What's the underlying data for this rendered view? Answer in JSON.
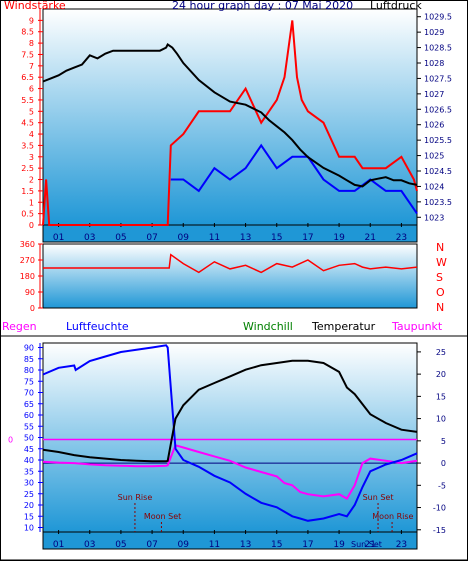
{
  "header": {
    "left_label": "Windstärke",
    "title": "24 hour graph day : 07 Mai 2020",
    "right_label": "Luftdruck"
  },
  "colors": {
    "wind": "#ff0000",
    "gust_blue": "#0000ff",
    "pressure": "#000000",
    "direction": "#ff0000",
    "temperature": "#000000",
    "humidity": "#0000ff",
    "windchill": "#008000",
    "dewpoint": "#ff00ff",
    "zero_line": "#ff00ff",
    "rain_label": "#ff00ff",
    "axis_text": "#000080",
    "plot_top": "#ffffff",
    "plot_bottom": "#1f97d6"
  },
  "hour_ticks": [
    "01",
    "03",
    "05",
    "07",
    "09",
    "11",
    "13",
    "15",
    "17",
    "19",
    "21",
    "23"
  ],
  "chart_data": [
    {
      "type": "line",
      "name": "wind-pressure",
      "x_unit": "hour",
      "xlim": [
        0,
        24
      ],
      "y_left": {
        "label": "Windstärke",
        "range": [
          0,
          9.5
        ],
        "ticks": [
          "0",
          "0.5",
          "1",
          "1.5",
          "2",
          "2.5",
          "3",
          "3.5",
          "4",
          "4.5",
          "5",
          "5.5",
          "6",
          "6.5",
          "7",
          "7.5",
          "8",
          "8.5",
          "9"
        ]
      },
      "y_right": {
        "label": "Luftdruck",
        "range": [
          1022.75,
          1029.75
        ],
        "ticks": [
          "1023",
          "1023.5",
          "1024",
          "1024.5",
          "1025",
          "1025.5",
          "1026",
          "1026.5",
          "1027",
          "1027.5",
          "1028",
          "1028.5",
          "1029",
          "1029.5"
        ]
      },
      "series": [
        {
          "name": "Luftdruck",
          "axis": "right",
          "x": [
            0,
            0.5,
            1,
            1.5,
            2,
            2.5,
            3,
            3.5,
            4,
            4.5,
            5,
            5.5,
            6,
            6.5,
            7,
            7.5,
            7.9,
            8,
            8.3,
            8.6,
            9,
            10,
            11,
            12,
            13,
            14,
            14.5,
            15,
            15.5,
            16,
            16.5,
            17,
            18,
            19,
            19.5,
            20,
            20.5,
            21,
            21.5,
            22,
            22.5,
            23,
            23.5,
            24
          ],
          "y": [
            1027.4,
            1027.5,
            1027.6,
            1027.75,
            1027.85,
            1027.95,
            1028.25,
            1028.15,
            1028.3,
            1028.4,
            1028.4,
            1028.4,
            1028.4,
            1028.4,
            1028.4,
            1028.4,
            1028.5,
            1028.6,
            1028.5,
            1028.3,
            1028.0,
            1027.45,
            1027.05,
            1026.75,
            1026.65,
            1026.4,
            1026.15,
            1025.95,
            1025.75,
            1025.5,
            1025.2,
            1024.95,
            1024.6,
            1024.35,
            1024.2,
            1024.05,
            1024.0,
            1024.2,
            1024.25,
            1024.3,
            1024.2,
            1024.2,
            1024.1,
            1024.05
          ]
        },
        {
          "name": "Böen",
          "axis": "left",
          "x": [
            0,
            0.2,
            0.4,
            8.0,
            8.2,
            9,
            10,
            11,
            12,
            13,
            14,
            15,
            15.5,
            16,
            16.3,
            16.6,
            17,
            18,
            19,
            20,
            20.5,
            21,
            22,
            23,
            23.8,
            24
          ],
          "y": [
            0,
            2,
            0,
            0,
            3.5,
            4,
            5,
            5,
            5,
            6,
            4.5,
            5.5,
            6.5,
            9,
            6.5,
            5.5,
            5,
            4.5,
            3,
            3,
            2.5,
            2.5,
            2.5,
            3,
            2,
            1.5
          ]
        },
        {
          "name": "Wind",
          "axis": "left",
          "x": [
            8.2,
            9,
            10,
            11,
            12,
            13,
            14,
            15,
            16,
            17,
            18,
            19,
            20,
            21,
            22,
            23,
            24
          ],
          "y": [
            2,
            2,
            1.5,
            2.5,
            2,
            2.5,
            3.5,
            2.5,
            3,
            3,
            2,
            1.5,
            1.5,
            2,
            1.5,
            1.5,
            0.5
          ]
        }
      ]
    },
    {
      "type": "line",
      "name": "wind-direction",
      "x_unit": "hour",
      "xlim": [
        0,
        24
      ],
      "y_left": {
        "range": [
          0,
          360
        ],
        "ticks": [
          "0",
          "90",
          "180",
          "270",
          "360"
        ]
      },
      "y_right_labels": [
        "N",
        "W",
        "S",
        "O",
        "N"
      ],
      "series": [
        {
          "name": "Windrichtung",
          "x": [
            0,
            8.1,
            8.2,
            9,
            10,
            11,
            12,
            13,
            14,
            15,
            16,
            17,
            18,
            19,
            20,
            20.5,
            21,
            22,
            23,
            24
          ],
          "y": [
            225,
            225,
            300,
            250,
            200,
            260,
            220,
            240,
            200,
            250,
            230,
            270,
            210,
            240,
            250,
            230,
            220,
            230,
            220,
            230
          ]
        }
      ]
    },
    {
      "type": "line",
      "name": "temperature-humidity",
      "x_unit": "hour",
      "xlim": [
        0,
        24
      ],
      "y_left": {
        "range": [
          8,
          92
        ],
        "ticks": [
          "10",
          "15",
          "20",
          "25",
          "30",
          "35",
          "40",
          "45",
          "50",
          "55",
          "60",
          "65",
          "70",
          "75",
          "80",
          "85",
          "90"
        ]
      },
      "y_right": {
        "range": [
          -15.5,
          27
        ],
        "ticks": [
          "-15",
          "-10",
          "-5",
          "0",
          "5",
          "10",
          "15",
          "20",
          "25"
        ]
      },
      "legend": [
        "Regen",
        "Luftfeuchte",
        "Windchill",
        "Temperatur",
        "Taupunkt"
      ],
      "series": [
        {
          "name": "Luftfeuchte",
          "axis": "left",
          "x": [
            0,
            1,
            2,
            2.1,
            3,
            4,
            5,
            6,
            7,
            7.9,
            8,
            8.5,
            9,
            10,
            11,
            12,
            13,
            14,
            15,
            15.5,
            16,
            16.5,
            17,
            18,
            19,
            19.5,
            20,
            20.5,
            21,
            22,
            23,
            24
          ],
          "y": [
            78,
            81,
            82,
            80,
            84,
            86,
            88,
            89,
            90,
            91,
            90,
            45,
            40,
            37,
            33,
            30,
            25,
            21,
            19,
            17,
            15,
            14,
            13,
            14,
            16,
            15,
            20,
            28,
            35,
            38,
            40,
            43
          ]
        },
        {
          "name": "Temperatur",
          "axis": "right",
          "x": [
            0,
            1,
            2,
            3,
            4,
            5,
            6,
            7,
            7.9,
            8,
            8.5,
            9,
            10,
            11,
            12,
            13,
            14,
            15,
            16,
            17,
            18,
            19,
            19.5,
            20,
            21,
            22,
            23,
            24
          ],
          "y": [
            3,
            2.5,
            1.8,
            1.3,
            1,
            0.7,
            0.5,
            0.4,
            0.4,
            0.5,
            10,
            13,
            16.5,
            18,
            19.5,
            21,
            22,
            22.5,
            23,
            23,
            22.5,
            20.5,
            17,
            15.5,
            11,
            9,
            7.5,
            7
          ]
        },
        {
          "name": "Taupunkt",
          "axis": "right",
          "x": [
            0,
            1,
            2,
            3,
            4,
            5,
            6,
            7,
            7.9,
            8,
            8.5,
            9,
            10,
            11,
            12,
            13,
            14,
            15,
            15.5,
            16,
            16.5,
            17,
            18,
            19,
            19.5,
            20,
            20.5,
            21,
            22,
            23,
            24
          ],
          "y": [
            0.3,
            0.1,
            0,
            -0.3,
            -0.5,
            -0.6,
            -0.7,
            -0.7,
            -0.6,
            -0.5,
            4,
            3.5,
            2.5,
            1.5,
            0.5,
            -1,
            -2,
            -3,
            -4.5,
            -5,
            -6.5,
            -7,
            -7.5,
            -7,
            -8,
            -5,
            0,
            1,
            0.5,
            0,
            0.5
          ]
        },
        {
          "name": "Nullinie",
          "axis": "right",
          "x": [
            0,
            24
          ],
          "y": [
            5.3,
            5.3
          ]
        }
      ],
      "annotations": [
        {
          "text": "Sun Rise",
          "hour": 5.9
        },
        {
          "text": "Moon Set",
          "hour": 7.6
        },
        {
          "text": "Sun Set",
          "hour": 21.5
        },
        {
          "text": "Moon Rise",
          "hour": 22.4
        }
      ],
      "extra_labels": [
        "0",
        "Sun Set"
      ]
    }
  ]
}
